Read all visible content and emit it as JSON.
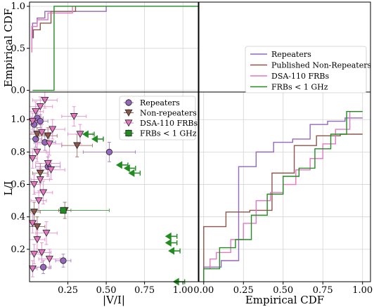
{
  "chart_data": [
    {
      "panel": "top-left",
      "type": "line",
      "step": true,
      "xlim": [
        0.0,
        1.1
      ],
      "ylim": [
        -0.02,
        1.05
      ],
      "ylabel": "Empirical CDF",
      "yticks": [
        0.0,
        0.5,
        1.0
      ],
      "ytick_labels": [
        "0.0",
        "0.5",
        "1.0"
      ],
      "grid": true,
      "series": [
        {
          "name": "Repeaters",
          "color": "#9467bd",
          "x": [
            0.02,
            0.02,
            0.05,
            0.05,
            0.1,
            0.1,
            0.5,
            0.5
          ],
          "y": [
            0.62,
            0.8,
            0.8,
            0.86,
            0.86,
            0.94,
            0.94,
            1.0
          ]
        },
        {
          "name": "Published Non-Repeaters",
          "color": "#8c564b",
          "x": [
            0.025,
            0.025,
            0.07,
            0.07,
            0.14,
            0.14,
            0.3,
            0.3
          ],
          "y": [
            0.62,
            0.72,
            0.72,
            0.8,
            0.8,
            0.94,
            0.94,
            1.0
          ]
        },
        {
          "name": "DSA-110 FRBs",
          "color": "#e377c2",
          "x": [
            0.015,
            0.015,
            0.05,
            0.05,
            0.12,
            0.12,
            0.28,
            0.28
          ],
          "y": [
            0.45,
            0.76,
            0.76,
            0.84,
            0.84,
            0.92,
            0.92,
            1.0
          ]
        },
        {
          "name": "FRBs < 1 GHz",
          "color": "#228b22",
          "x": [
            0.02,
            0.16,
            0.16,
            1.1
          ],
          "y": [
            0.0,
            0.0,
            1.0,
            1.0
          ]
        }
      ]
    },
    {
      "panel": "bottom-left",
      "type": "scatter",
      "xlabel": "|V/I|",
      "ylabel": "L/I",
      "xlim": [
        0.0,
        1.1
      ],
      "ylim": [
        0.0,
        1.17
      ],
      "xticks": [
        0.25,
        0.5,
        0.75,
        1.0
      ],
      "xtick_labels": [
        "0.25",
        "0.50",
        "0.75",
        "1.00"
      ],
      "yticks": [
        0.2,
        0.4,
        0.6,
        0.8,
        1.0
      ],
      "ytick_labels": [
        "0.2",
        "0.4",
        "0.6",
        "0.8",
        "1.0"
      ],
      "grid": true,
      "legend_position": "top-right",
      "series": [
        {
          "name": "Repeaters",
          "marker": "circle",
          "color": "#9467bd",
          "points": [
            [
              0.03,
              0.97,
              0.04,
              0.04
            ],
            [
              0.05,
              1.01,
              0.04,
              0.03
            ],
            [
              0.07,
              0.99,
              0.05,
              0.04
            ],
            [
              0.04,
              0.88,
              0.04,
              0.05
            ],
            [
              0.1,
              0.86,
              0.07,
              0.05
            ],
            [
              0.12,
              0.71,
              0.08,
              0.06
            ],
            [
              0.52,
              0.8,
              0.17,
              0.06
            ],
            [
              0.22,
              0.13,
              0.05,
              0.04
            ],
            [
              0.09,
              0.09,
              0.05,
              0.04
            ]
          ]
        },
        {
          "name": "Non-repeaters",
          "marker": "triangle-down",
          "color": "#8c564b",
          "points": [
            [
              0.05,
              0.91,
              0.05,
              0.04
            ],
            [
              0.12,
              0.9,
              0.06,
              0.05
            ],
            [
              0.31,
              0.84,
              0.1,
              0.07
            ],
            [
              0.07,
              0.67,
              0.05,
              0.06
            ],
            [
              0.03,
              0.43,
              0.04,
              0.06
            ],
            [
              0.23,
              0.44,
              0.04,
              0.05
            ],
            [
              0.05,
              0.34,
              0.05,
              0.06
            ]
          ]
        },
        {
          "name": "DSA-110 FRBs",
          "marker": "triangle-down",
          "color": "#e377c2",
          "points": [
            [
              0.1,
              1.12,
              0.08,
              0.05
            ],
            [
              0.07,
              1.08,
              0.08,
              0.06
            ],
            [
              0.04,
              1.05,
              0.05,
              0.06
            ],
            [
              0.02,
              0.99,
              0.03,
              0.05
            ],
            [
              0.15,
              0.94,
              0.08,
              0.06
            ],
            [
              0.29,
              1.02,
              0.08,
              0.06
            ],
            [
              0.33,
              0.91,
              0.08,
              0.06
            ],
            [
              0.08,
              0.92,
              0.07,
              0.05
            ],
            [
              0.13,
              0.85,
              0.08,
              0.07
            ],
            [
              0.05,
              0.8,
              0.06,
              0.06
            ],
            [
              0.02,
              0.76,
              0.03,
              0.06
            ],
            [
              0.12,
              0.73,
              0.08,
              0.07
            ],
            [
              0.14,
              0.69,
              0.09,
              0.06
            ],
            [
              0.07,
              0.63,
              0.06,
              0.07
            ],
            [
              0.03,
              0.6,
              0.04,
              0.06
            ],
            [
              0.09,
              0.55,
              0.06,
              0.07
            ],
            [
              0.06,
              0.5,
              0.05,
              0.06
            ],
            [
              0.02,
              0.36,
              0.03,
              0.06
            ],
            [
              0.11,
              0.3,
              0.07,
              0.07
            ],
            [
              0.05,
              0.26,
              0.05,
              0.06
            ],
            [
              0.08,
              0.18,
              0.06,
              0.06
            ],
            [
              0.03,
              0.17,
              0.04,
              0.06
            ],
            [
              0.13,
              0.14,
              0.07,
              0.06
            ],
            [
              0.02,
              0.08,
              0.03,
              0.05
            ]
          ]
        },
        {
          "name": "FRBs < 1 GHz",
          "marker": "square",
          "color": "#228b22",
          "points": [
            [
              0.22,
              0.44,
              0.3,
              0.0
            ]
          ]
        }
      ],
      "upper_limits": {
        "series": "FRBs < 1 GHz",
        "direction": "left",
        "color": "#228b22",
        "points": [
          [
            0.38,
            0.91
          ],
          [
            0.44,
            0.88
          ],
          [
            0.6,
            0.72
          ],
          [
            0.65,
            0.7
          ],
          [
            0.68,
            0.67
          ],
          [
            0.92,
            0.28
          ],
          [
            0.92,
            0.24
          ],
          [
            0.94,
            0.19
          ],
          [
            0.97,
            0.0
          ]
        ]
      }
    },
    {
      "panel": "bottom-right",
      "type": "line",
      "step": true,
      "xlabel": "Empirical CDF",
      "xlim": [
        -0.03,
        1.05
      ],
      "ylim": [
        0.0,
        1.17
      ],
      "xticks": [
        0.0,
        0.25,
        0.5,
        0.75,
        1.0
      ],
      "xtick_labels": [
        "0.00",
        "0.25",
        "0.50",
        "0.75",
        "1.00"
      ],
      "grid": true,
      "legend_position": "top-left",
      "series": [
        {
          "name": "Repeaters",
          "color": "#9467bd",
          "x": [
            0.0,
            0.0,
            0.11,
            0.11,
            0.22,
            0.22,
            0.33,
            0.33,
            0.44,
            0.44,
            0.56,
            0.56,
            0.67,
            0.67,
            0.78,
            0.78,
            0.89,
            0.89,
            1.0
          ],
          "y": [
            0.0,
            0.09,
            0.09,
            0.13,
            0.13,
            0.71,
            0.71,
            0.8,
            0.8,
            0.86,
            0.86,
            0.88,
            0.88,
            0.97,
            0.97,
            0.99,
            0.99,
            1.01,
            1.01
          ]
        },
        {
          "name": "Published Non-Repeaters",
          "color": "#8c564b",
          "x": [
            0.0,
            0.0,
            0.14,
            0.14,
            0.29,
            0.29,
            0.43,
            0.43,
            0.57,
            0.57,
            0.71,
            0.71,
            0.86,
            0.86,
            1.0
          ],
          "y": [
            0.0,
            0.34,
            0.34,
            0.43,
            0.43,
            0.44,
            0.44,
            0.67,
            0.67,
            0.84,
            0.84,
            0.9,
            0.9,
            0.91,
            0.91
          ]
        },
        {
          "name": "DSA-110 FRBs",
          "color": "#e377c2",
          "x": [
            0.0,
            0.0,
            0.04,
            0.04,
            0.08,
            0.08,
            0.17,
            0.17,
            0.25,
            0.25,
            0.33,
            0.33,
            0.42,
            0.42,
            0.5,
            0.5,
            0.58,
            0.58,
            0.67,
            0.67,
            0.75,
            0.75,
            0.83,
            0.83,
            0.92,
            0.92,
            1.0
          ],
          "y": [
            0.0,
            0.08,
            0.08,
            0.14,
            0.14,
            0.18,
            0.18,
            0.26,
            0.26,
            0.36,
            0.36,
            0.5,
            0.5,
            0.55,
            0.55,
            0.6,
            0.6,
            0.69,
            0.69,
            0.76,
            0.76,
            0.85,
            0.85,
            0.94,
            0.94,
            1.05,
            1.05
          ]
        },
        {
          "name": "FRBs < 1 GHz",
          "color": "#228b22",
          "x": [
            0.0,
            0.0,
            0.1,
            0.1,
            0.2,
            0.2,
            0.3,
            0.3,
            0.4,
            0.4,
            0.5,
            0.5,
            0.6,
            0.6,
            0.7,
            0.7,
            0.8,
            0.8,
            0.9,
            0.9,
            1.0
          ],
          "y": [
            0.0,
            0.08,
            0.08,
            0.21,
            0.21,
            0.26,
            0.26,
            0.41,
            0.41,
            0.54,
            0.54,
            0.65,
            0.65,
            0.7,
            0.7,
            0.82,
            0.82,
            0.91,
            0.91,
            1.05,
            1.05
          ]
        }
      ]
    }
  ]
}
